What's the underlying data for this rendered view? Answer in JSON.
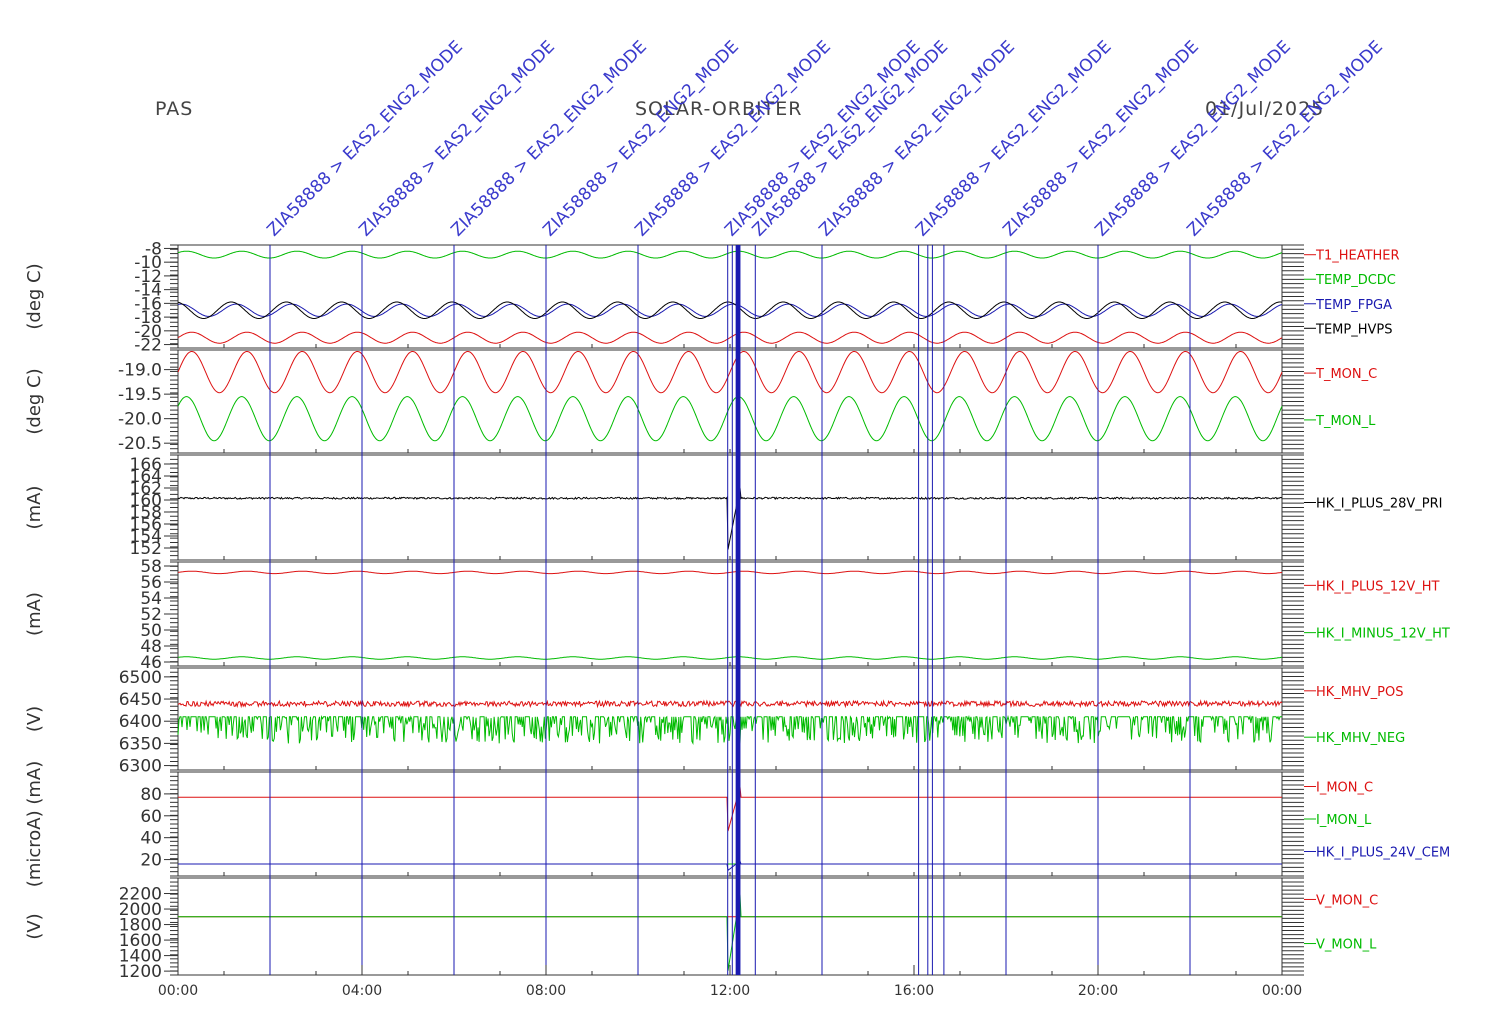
{
  "header": {
    "left": "PAS",
    "center": "SOLAR-ORBITER",
    "right": "01/Jul/2025"
  },
  "colors": {
    "red": "#dd1111",
    "green": "#00bb00",
    "blue": "#1a1ab0",
    "black": "#000000",
    "annotation": "#3a3acc",
    "axis": "#333333"
  },
  "chart_data": {
    "type": "line",
    "x_unit": "hours",
    "x_range": [
      0,
      24
    ],
    "x_tick_labels": [
      "00:00",
      "04:00",
      "08:00",
      "12:00",
      "16:00",
      "20:00",
      "00:00"
    ],
    "x_tick_hours": [
      0,
      4,
      8,
      12,
      16,
      20,
      24
    ],
    "event_markers": [
      {
        "hour": 2.0,
        "label": "ZIA58888 > EAS2_ENG2_MODE"
      },
      {
        "hour": 4.0,
        "label": "ZIA58888 > EAS2_ENG2_MODE"
      },
      {
        "hour": 6.0,
        "label": "ZIA58888 > EAS2_ENG2_MODE"
      },
      {
        "hour": 8.0,
        "label": "ZIA58888 > EAS2_ENG2_MODE"
      },
      {
        "hour": 10.0,
        "label": "ZIA58888 > EAS2_ENG2_MODE"
      },
      {
        "hour": 11.95,
        "label": "ZIA58888 > EAS2_ENG2_MODE"
      },
      {
        "hour": 12.05,
        "label": ""
      },
      {
        "hour": 12.15,
        "label": ""
      },
      {
        "hour": 12.2,
        "label": ""
      },
      {
        "hour": 12.55,
        "label": "ZIA58888 > EAS2_ENG2_MODE"
      },
      {
        "hour": 14.0,
        "label": "ZIA58888 > EAS2_ENG2_MODE"
      },
      {
        "hour": 16.1,
        "label": "ZIA58888 > EAS2_ENG2_MODE"
      },
      {
        "hour": 16.3,
        "label": ""
      },
      {
        "hour": 16.4,
        "label": ""
      },
      {
        "hour": 16.65,
        "label": ""
      },
      {
        "hour": 18.0,
        "label": "ZIA58888 > EAS2_ENG2_MODE"
      },
      {
        "hour": 20.0,
        "label": "ZIA58888 > EAS2_ENG2_MODE"
      },
      {
        "hour": 22.0,
        "label": "ZIA58888 > EAS2_ENG2_MODE"
      }
    ],
    "panels": [
      {
        "ylabel": "(deg C)",
        "ylim": [
          -22.5,
          -7.5
        ],
        "y_tick_labels": [
          "-8",
          "-10",
          "-12",
          "-14",
          "-16",
          "-18",
          "-20",
          "-22"
        ],
        "y_ticks": [
          -8,
          -10,
          -12,
          -14,
          -16,
          -18,
          -20,
          -22
        ],
        "series": [
          {
            "name": "T1_HEATHER",
            "color": "#dd1111",
            "base": -21.0,
            "amp": 0.8,
            "period_h": 1.2,
            "noise": 0.0
          },
          {
            "name": "TEMP_DCDC",
            "color": "#00bb00",
            "base": -8.9,
            "amp": 0.5,
            "period_h": 1.2,
            "noise": 0.0
          },
          {
            "name": "TEMP_FPGA",
            "color": "#1a1ab0",
            "base": -17.0,
            "amp": 0.9,
            "period_h": 1.2,
            "noise": 0.0
          },
          {
            "name": "TEMP_HVPS",
            "color": "#000000",
            "base": -17.0,
            "amp": 1.2,
            "period_h": 1.2,
            "noise": 0.0
          }
        ]
      },
      {
        "ylabel": "(deg C)",
        "ylim": [
          -20.7,
          -18.6
        ],
        "y_tick_labels": [
          "-19.0",
          "-19.5",
          "-20.0",
          "-20.5"
        ],
        "y_ticks": [
          -19.0,
          -19.5,
          -20.0,
          -20.5
        ],
        "series": [
          {
            "name": "T_MON_C",
            "color": "#dd1111",
            "base": -19.05,
            "amp": 0.42,
            "period_h": 1.2,
            "noise": 0.0
          },
          {
            "name": "T_MON_L",
            "color": "#00bb00",
            "base": -20.0,
            "amp": 0.45,
            "period_h": 1.2,
            "noise": 0.0
          }
        ]
      },
      {
        "ylabel": "(mA)",
        "ylim": [
          150,
          167.5
        ],
        "y_tick_labels": [
          "166",
          "164",
          "162",
          "160",
          "158",
          "156",
          "154",
          "152"
        ],
        "y_ticks": [
          166,
          164,
          162,
          160,
          158,
          156,
          154,
          152
        ],
        "series": [
          {
            "name": "HK_I_PLUS_28V_PRI",
            "color": "#000000",
            "base": 160.3,
            "amp": 0.0,
            "period_h": 1.2,
            "noise": 0.15,
            "dip": [
              151.5,
              162.5
            ]
          }
        ]
      },
      {
        "ylabel": "(mA)",
        "ylim": [
          45.5,
          58.5
        ],
        "y_tick_labels": [
          "58",
          "56",
          "54",
          "52",
          "50",
          "48",
          "46"
        ],
        "y_ticks": [
          58,
          56,
          54,
          52,
          50,
          48,
          46
        ],
        "series": [
          {
            "name": "HK_I_PLUS_12V_HT",
            "color": "#dd1111",
            "base": 57.2,
            "amp": 0.15,
            "period_h": 1.2,
            "noise": 0.0
          },
          {
            "name": "HK_I_MINUS_12V_HT",
            "color": "#00bb00",
            "base": 46.5,
            "amp": 0.15,
            "period_h": 1.2,
            "noise": 0.0
          }
        ]
      },
      {
        "ylabel": "(V)",
        "ylim": [
          6290,
          6520
        ],
        "y_tick_labels": [
          "6500",
          "6450",
          "6400",
          "6350",
          "6300"
        ],
        "y_ticks": [
          6500,
          6450,
          6400,
          6350,
          6300
        ],
        "series": [
          {
            "name": "HK_MHV_POS",
            "color": "#dd1111",
            "base": 6437,
            "amp": 0,
            "period_h": 1.2,
            "noise": 12,
            "steps": true
          },
          {
            "name": "HK_MHV_NEG",
            "color": "#00bb00",
            "base": 6410,
            "amp": 0,
            "period_h": 1.2,
            "noise": 60,
            "steps": true
          }
        ]
      },
      {
        "ylabel": "(microA) (mA)",
        "ylim": [
          5,
          100
        ],
        "y_tick_labels": [
          "80",
          "60",
          "40",
          "20"
        ],
        "y_ticks": [
          80,
          60,
          40,
          20
        ],
        "series": [
          {
            "name": "I_MON_C",
            "color": "#dd1111",
            "base": 77,
            "amp": 0,
            "period_h": 1.2,
            "noise": 0.0,
            "dip": [
              45,
              88
            ]
          },
          {
            "name": "I_MON_L",
            "color": "#00bb00",
            "base": 16,
            "amp": 0,
            "period_h": 1.2,
            "noise": 0.0
          },
          {
            "name": "HK_I_PLUS_24V_CEM",
            "color": "#1a1ab0",
            "base": 16,
            "amp": 0,
            "period_h": 1.2,
            "noise": 0.0,
            "dip": [
              10,
              19
            ]
          }
        ]
      },
      {
        "ylabel": "(V)",
        "ylim": [
          1150,
          2400
        ],
        "y_tick_labels": [
          "2200",
          "2000",
          "1800",
          "1600",
          "1400",
          "1200"
        ],
        "y_ticks": [
          2200,
          2000,
          1800,
          1600,
          1400,
          1200
        ],
        "series": [
          {
            "name": "V_MON_C",
            "color": "#dd1111",
            "base": 1900,
            "amp": 0,
            "period_h": 1.2,
            "noise": 0.0
          },
          {
            "name": "V_MON_L",
            "color": "#00bb00",
            "base": 1900,
            "amp": 0,
            "period_h": 1.2,
            "noise": 0.0,
            "dip": [
              1180,
              2230
            ]
          }
        ]
      }
    ]
  }
}
